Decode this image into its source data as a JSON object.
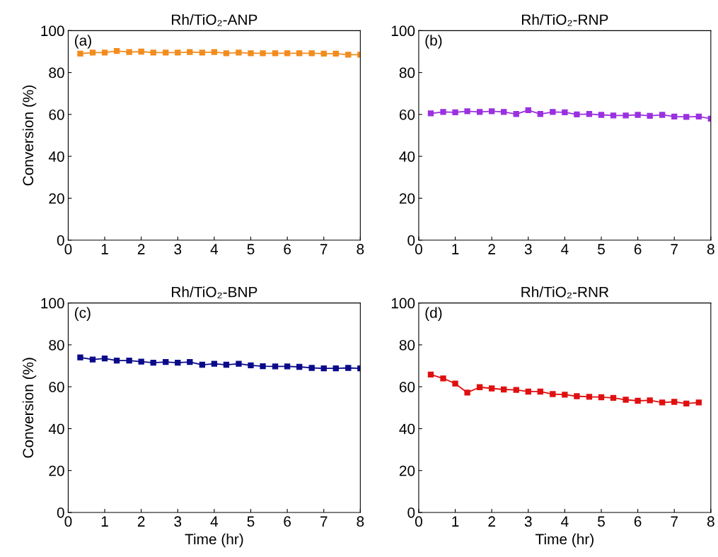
{
  "chart_data": [
    {
      "type": "line",
      "title": "Rh/TiO₂-ANP",
      "ylabel": "Conversion (%)",
      "annotations": [
        "(a)"
      ],
      "marker": "square",
      "grid": false,
      "xlim": [
        0,
        8
      ],
      "ylim": [
        0,
        100
      ],
      "xticks": [
        0,
        1,
        2,
        3,
        4,
        5,
        6,
        7,
        8
      ],
      "yticks": [
        0,
        20,
        40,
        60,
        80,
        100
      ],
      "x": [
        0.33,
        0.67,
        1,
        1.33,
        1.67,
        2,
        2.33,
        2.67,
        3,
        3.33,
        3.67,
        4,
        4.33,
        4.67,
        5,
        5.33,
        5.67,
        6,
        6.33,
        6.67,
        7,
        7.33,
        7.67,
        8
      ],
      "series": [
        {
          "color": "#f28c1e",
          "values": [
            89,
            89.5,
            89.5,
            90.3,
            89.8,
            90,
            89.5,
            89.5,
            89.5,
            89.8,
            89.5,
            89.8,
            89.2,
            89.5,
            89.2,
            89.2,
            89.2,
            89.2,
            89.2,
            89.2,
            89,
            89,
            88.5,
            88.5
          ]
        }
      ]
    },
    {
      "type": "line",
      "title": "Rh/TiO₂-RNP",
      "annotations": [
        "(b)"
      ],
      "marker": "square",
      "grid": false,
      "xlim": [
        0,
        8
      ],
      "ylim": [
        0,
        100
      ],
      "xticks": [
        0,
        1,
        2,
        3,
        4,
        5,
        6,
        7,
        8
      ],
      "yticks": [
        0,
        20,
        40,
        60,
        80,
        100
      ],
      "x": [
        0.33,
        0.67,
        1,
        1.33,
        1.67,
        2,
        2.33,
        2.67,
        3,
        3.33,
        3.67,
        4,
        4.33,
        4.67,
        5,
        5.33,
        5.67,
        6,
        6.33,
        6.67,
        7,
        7.33,
        7.67,
        8
      ],
      "series": [
        {
          "color": "#9b30e0",
          "values": [
            60.5,
            61.2,
            61,
            61.5,
            61.2,
            61.5,
            61.2,
            60.2,
            62,
            60.2,
            61.2,
            61,
            60,
            60.2,
            59.8,
            59.5,
            59.5,
            59.8,
            59.3,
            59.8,
            59,
            58.8,
            59,
            58
          ]
        }
      ]
    },
    {
      "type": "line",
      "title": "Rh/TiO₂-BNP",
      "xlabel": "Time (hr)",
      "ylabel": "Conversion (%)",
      "annotations": [
        "(c)"
      ],
      "marker": "square",
      "grid": false,
      "xlim": [
        0,
        8
      ],
      "ylim": [
        0,
        100
      ],
      "xticks": [
        0,
        1,
        2,
        3,
        4,
        5,
        6,
        7,
        8
      ],
      "yticks": [
        0,
        20,
        40,
        60,
        80,
        100
      ],
      "x": [
        0.33,
        0.67,
        1,
        1.33,
        1.67,
        2,
        2.33,
        2.67,
        3,
        3.33,
        3.67,
        4,
        4.33,
        4.67,
        5,
        5.33,
        5.67,
        6,
        6.33,
        6.67,
        7,
        7.33,
        7.67,
        8
      ],
      "series": [
        {
          "color": "#0a0a8a",
          "values": [
            74,
            73,
            73.5,
            72.5,
            72.5,
            72,
            71.5,
            71.8,
            71.5,
            71.8,
            70.5,
            71,
            70.5,
            71,
            70.2,
            69.8,
            69.7,
            69.7,
            69.5,
            69,
            68.8,
            68.8,
            69,
            68.8
          ]
        }
      ]
    },
    {
      "type": "line",
      "title": "Rh/TiO₂-RNR",
      "xlabel": "Time (hr)",
      "annotations": [
        "(d)"
      ],
      "marker": "square",
      "grid": false,
      "xlim": [
        0,
        8
      ],
      "ylim": [
        0,
        100
      ],
      "xticks": [
        0,
        1,
        2,
        3,
        4,
        5,
        6,
        7,
        8
      ],
      "yticks": [
        0,
        20,
        40,
        60,
        80,
        100
      ],
      "x": [
        0.33,
        0.67,
        1,
        1.33,
        1.67,
        2,
        2.33,
        2.67,
        3,
        3.33,
        3.67,
        4,
        4.33,
        4.67,
        5,
        5.33,
        5.67,
        6,
        6.33,
        6.67,
        7,
        7.33,
        7.67
      ],
      "series": [
        {
          "color": "#e01010",
          "values": [
            65.8,
            64,
            61.5,
            57.2,
            59.8,
            59.2,
            58.7,
            58.5,
            57.7,
            57.7,
            56.5,
            56.2,
            55.5,
            55.2,
            55,
            54.7,
            53.8,
            53.3,
            53.5,
            52.5,
            52.8,
            52,
            52.5
          ]
        }
      ]
    }
  ]
}
